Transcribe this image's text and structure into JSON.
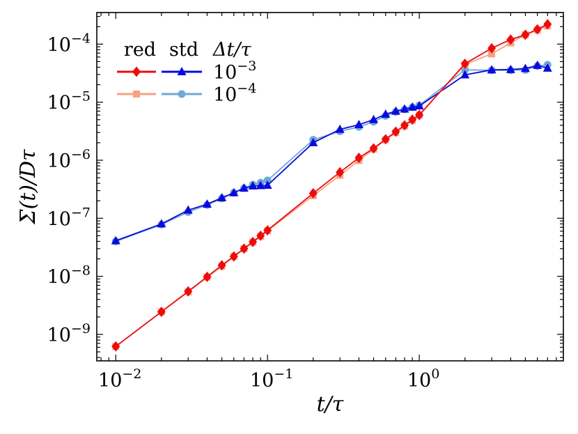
{
  "chart_data": {
    "type": "line",
    "title": "",
    "xlabel": "t/τ",
    "ylabel": "Σ(t)/Dτ",
    "xscale": "log",
    "yscale": "log",
    "xlim": [
      0.0075,
      8.9
    ],
    "ylim": [
      3.5e-10,
      0.00035
    ],
    "x_ticks": [
      {
        "base": "10",
        "exp": "−2",
        "value": 0.01
      },
      {
        "base": "10",
        "exp": "−1",
        "value": 0.1
      },
      {
        "base": "10",
        "exp": "0",
        "value": 1
      }
    ],
    "y_ticks": [
      {
        "base": "10",
        "exp": "−9",
        "value": 1e-09
      },
      {
        "base": "10",
        "exp": "−8",
        "value": 1e-08
      },
      {
        "base": "10",
        "exp": "−7",
        "value": 1e-07
      },
      {
        "base": "10",
        "exp": "−6",
        "value": 1e-06
      },
      {
        "base": "10",
        "exp": "−5",
        "value": 1e-05
      },
      {
        "base": "10",
        "exp": "−4",
        "value": 0.0001
      }
    ],
    "legend": {
      "placement": "top-left",
      "col_headers": [
        "red",
        "std"
      ],
      "dt_header": "Δt/τ",
      "rows": [
        {
          "base": "10",
          "exp": "−3"
        },
        {
          "base": "10",
          "exp": "−4"
        }
      ]
    },
    "series": [
      {
        "name": "std 10^-4",
        "method": "std",
        "dt": "10^-4",
        "color": "#6fa8d6",
        "marker": "circle",
        "x": [
          0.01,
          0.02,
          0.03,
          0.04,
          0.05,
          0.06,
          0.07,
          0.08,
          0.09,
          0.1,
          0.2,
          0.3,
          0.4,
          0.5,
          0.6,
          0.7,
          0.8,
          0.9,
          1,
          2,
          3,
          4,
          5,
          6,
          7
        ],
        "y": [
          4e-08,
          7.8e-08,
          1.28e-07,
          1.7e-07,
          2.2e-07,
          2.75e-07,
          3.3e-07,
          3.8e-07,
          4.1e-07,
          4.5e-07,
          2.25e-06,
          3.15e-06,
          3.75e-06,
          4.6e-06,
          5.8e-06,
          6.8e-06,
          7.5e-06,
          8.2e-06,
          8.8e-06,
          3.6e-05,
          3.55e-05,
          3.55e-05,
          3.6e-05,
          4.2e-05,
          4.4e-05
        ]
      },
      {
        "name": "std 10^-3",
        "method": "std",
        "dt": "10^-3",
        "color": "#0a0adf",
        "marker": "triangle",
        "x": [
          0.01,
          0.02,
          0.03,
          0.04,
          0.05,
          0.06,
          0.07,
          0.08,
          0.09,
          0.1,
          0.2,
          0.3,
          0.4,
          0.5,
          0.6,
          0.7,
          0.8,
          0.9,
          1,
          2,
          3,
          4,
          5,
          6,
          7
        ],
        "y": [
          4.1e-08,
          8e-08,
          1.38e-07,
          1.75e-07,
          2.25e-07,
          2.75e-07,
          3.3e-07,
          3.6e-07,
          3.65e-07,
          3.7e-07,
          2e-06,
          3.4e-06,
          4.1e-06,
          5e-06,
          6.2e-06,
          7e-06,
          7.6e-06,
          8.2e-06,
          8.6e-06,
          2.95e-05,
          3.6e-05,
          3.65e-05,
          3.8e-05,
          4.3e-05,
          3.85e-05
        ]
      },
      {
        "name": "red 10^-4",
        "method": "red",
        "dt": "10^-4",
        "color": "#f7a183",
        "marker": "square",
        "x": [
          0.01,
          0.02,
          0.03,
          0.04,
          0.05,
          0.06,
          0.07,
          0.08,
          0.09,
          0.1,
          0.2,
          0.3,
          0.4,
          0.5,
          0.6,
          0.7,
          0.8,
          0.9,
          1,
          2,
          3,
          4,
          5,
          6,
          7
        ],
        "y": [
          6.2e-10,
          2.45e-09,
          5.4e-09,
          9.7e-09,
          1.5e-08,
          2.2e-08,
          3e-08,
          3.9e-08,
          4.9e-08,
          6.1e-08,
          2.45e-07,
          5.5e-07,
          9.9e-07,
          1.55e-06,
          2.25e-06,
          3e-06,
          3.9e-06,
          4.9e-06,
          6e-06,
          4.45e-05,
          6.8e-05,
          0.000105,
          0.000145,
          0.000175,
          0.000205
        ]
      },
      {
        "name": "red 10^-3",
        "method": "red",
        "dt": "10^-3",
        "color": "#ee0b0b",
        "marker": "diamond",
        "x": [
          0.01,
          0.02,
          0.03,
          0.04,
          0.05,
          0.06,
          0.07,
          0.08,
          0.09,
          0.1,
          0.2,
          0.3,
          0.4,
          0.5,
          0.6,
          0.7,
          0.8,
          0.9,
          1,
          2,
          3,
          4,
          5,
          6,
          7
        ],
        "y": [
          6.2e-10,
          2.45e-09,
          5.5e-09,
          9.8e-09,
          1.55e-08,
          2.2e-08,
          3e-08,
          3.9e-08,
          5e-08,
          6.2e-08,
          2.7e-07,
          6.2e-07,
          1.1e-06,
          1.6e-06,
          2.3e-06,
          3.1e-06,
          4e-06,
          5e-06,
          6e-06,
          4.6e-05,
          8.5e-05,
          0.00012,
          0.000145,
          0.00018,
          0.00022
        ]
      }
    ]
  }
}
